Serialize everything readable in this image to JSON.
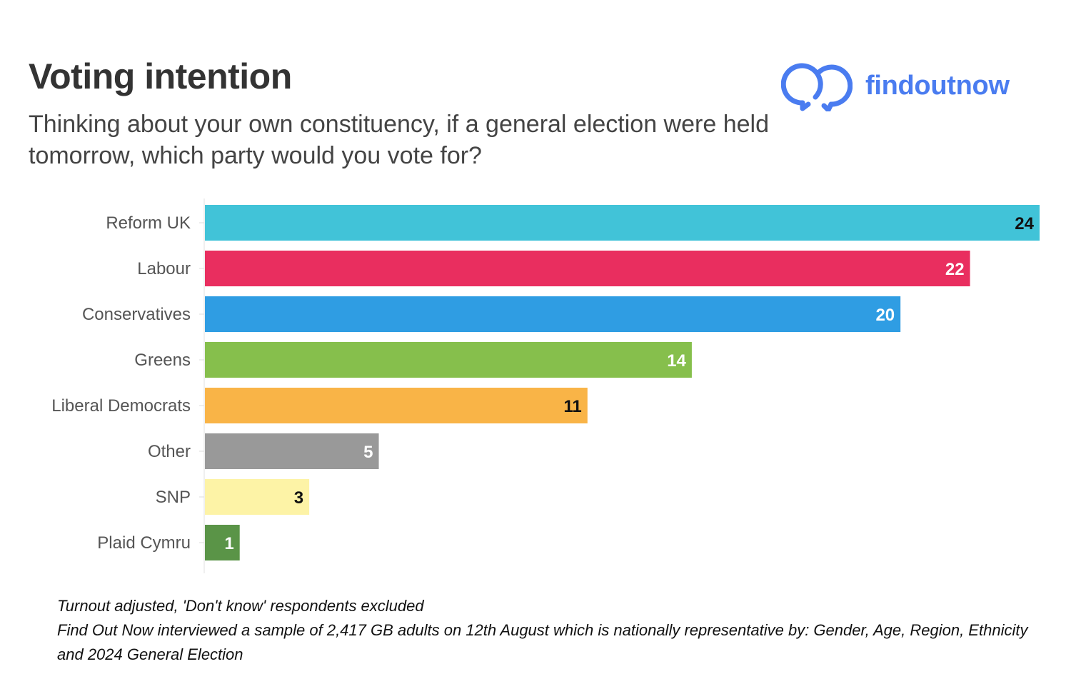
{
  "header": {
    "title": "Voting intention",
    "subtitle": "Thinking about your own constituency, if a general election were held tomorrow, which party would you vote for?"
  },
  "logo": {
    "text": "findoutnow",
    "icon": "double-speech-bubble-icon",
    "color": "#4a7cf0"
  },
  "chart_data": {
    "type": "bar",
    "orientation": "horizontal",
    "categories": [
      "Reform UK",
      "Labour",
      "Conservatives",
      "Greens",
      "Liberal Democrats",
      "Other",
      "SNP",
      "Plaid Cymru"
    ],
    "values": [
      24,
      22,
      20,
      14,
      11,
      5,
      3,
      1
    ],
    "colors": [
      "#41c3d8",
      "#e92e5f",
      "#2f9de3",
      "#86bf4c",
      "#f9b447",
      "#999999",
      "#fdf3a6",
      "#5a9447"
    ],
    "label_colors": [
      "#111111",
      "#ffffff",
      "#ffffff",
      "#ffffff",
      "#111111",
      "#ffffff",
      "#111111",
      "#ffffff"
    ],
    "xlim": [
      0,
      24
    ],
    "data_labels": true,
    "grid": false,
    "legend": "none"
  },
  "footnote": {
    "line1": "Turnout adjusted, 'Don't know' respondents excluded",
    "line2": "Find Out Now interviewed a sample of 2,417 GB adults on 12th August which is nationally representative by: Gender, Age, Region, Ethnicity and 2024 General Election"
  }
}
